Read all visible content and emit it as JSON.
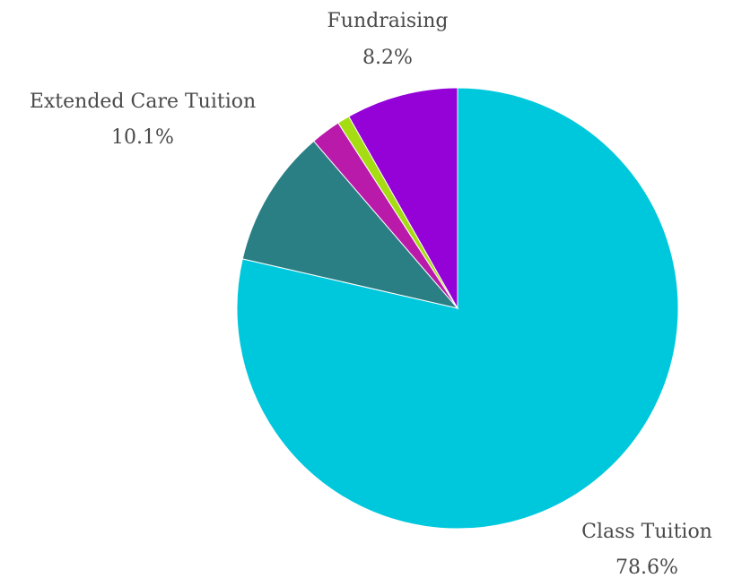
{
  "chart_data": {
    "type": "pie",
    "title": "",
    "start": "12 o'clock",
    "direction": "clockwise",
    "slices": [
      {
        "label": "Class Tuition",
        "value": 78.6,
        "value_label": "78.6%",
        "color": "#00C8DC",
        "show_label": true
      },
      {
        "label": "Extended Care Tuition",
        "value": 10.1,
        "value_label": "10.1%",
        "color": "#2A7F84",
        "show_label": true
      },
      {
        "label": "",
        "value": 2.2,
        "value_label": "",
        "color": "#BA1AA9",
        "show_label": false
      },
      {
        "label": "",
        "value": 0.9,
        "value_label": "",
        "color": "#A6DC12",
        "show_label": false
      },
      {
        "label": "Fundraising",
        "value": 8.2,
        "value_label": "8.2%",
        "color": "#9402D8",
        "show_label": true
      }
    ]
  }
}
